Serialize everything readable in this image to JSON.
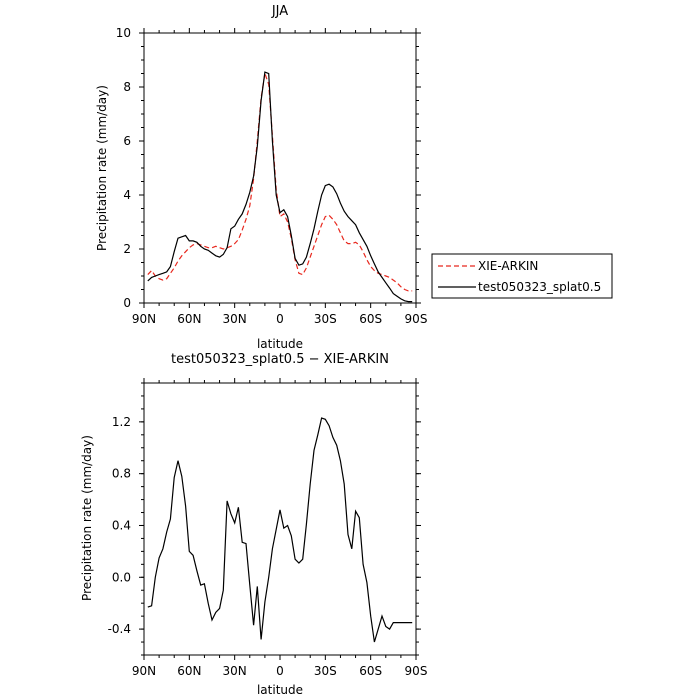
{
  "chart_data": [
    {
      "type": "line",
      "title": "JJA",
      "xlabel": "latitude",
      "ylabel": "Precipitation rate (mm/day)",
      "xlim": [
        90,
        -90
      ],
      "ylim": [
        0,
        10
      ],
      "x_ticks": [
        90,
        60,
        30,
        0,
        -30,
        -60,
        -90
      ],
      "x_tick_labels": [
        "90N",
        "60N",
        "30N",
        "0",
        "30S",
        "60S",
        "90S"
      ],
      "y_ticks": [
        0,
        2,
        4,
        6,
        8,
        10
      ],
      "y_tick_labels": [
        "0",
        "2",
        "4",
        "6",
        "8",
        "10"
      ],
      "legend": {
        "placement": "right",
        "entries": [
          "XIE-ARKIN",
          "test050323_splat0.5"
        ]
      },
      "series": [
        {
          "name": "XIE-ARKIN",
          "color": "#e8281e",
          "dash": "dashed",
          "x": [
            87.5,
            85,
            82.5,
            80,
            77.5,
            75,
            72.5,
            70,
            67.5,
            65,
            62.5,
            60,
            57.5,
            55,
            52.5,
            50,
            47.5,
            45,
            42.5,
            40,
            37.5,
            35,
            32.5,
            30,
            27.5,
            25,
            22.5,
            20,
            17.5,
            15,
            12.5,
            10,
            7.5,
            5,
            2.5,
            0,
            -2.5,
            -5,
            -7.5,
            -10,
            -12.5,
            -15,
            -17.5,
            -20,
            -22.5,
            -25,
            -27.5,
            -30,
            -32.5,
            -35,
            -37.5,
            -40,
            -42.5,
            -45,
            -47.5,
            -50,
            -52.5,
            -55,
            -57.5,
            -60,
            -62.5,
            -65,
            -67.5,
            -70,
            -72.5,
            -75,
            -77.5,
            -80,
            -82.5,
            -85,
            -87.5
          ],
          "y": [
            1.05,
            1.2,
            1.0,
            0.9,
            0.85,
            0.9,
            1.1,
            1.3,
            1.55,
            1.75,
            1.9,
            2.05,
            2.15,
            2.2,
            2.15,
            2.1,
            2.05,
            2.05,
            2.1,
            2.05,
            2.0,
            2.05,
            2.1,
            2.2,
            2.35,
            2.7,
            3.1,
            3.6,
            4.6,
            6.0,
            7.6,
            8.5,
            8.1,
            6.2,
            4.2,
            3.2,
            3.3,
            3.0,
            2.4,
            1.6,
            1.1,
            1.05,
            1.3,
            1.7,
            2.1,
            2.5,
            2.9,
            3.2,
            3.25,
            3.1,
            2.9,
            2.6,
            2.3,
            2.2,
            2.2,
            2.25,
            2.15,
            1.9,
            1.6,
            1.35,
            1.2,
            1.1,
            1.05,
            1.0,
            0.95,
            0.85,
            0.75,
            0.6,
            0.5,
            0.45,
            0.45
          ]
        },
        {
          "name": "test050323_splat0.5",
          "color": "#000000",
          "dash": "solid",
          "x": [
            87.5,
            85,
            82.5,
            80,
            77.5,
            75,
            72.5,
            70,
            67.5,
            65,
            62.5,
            60,
            57.5,
            55,
            52.5,
            50,
            47.5,
            45,
            42.5,
            40,
            37.5,
            35,
            32.5,
            30,
            27.5,
            25,
            22.5,
            20,
            17.5,
            15,
            12.5,
            10,
            7.5,
            5,
            2.5,
            0,
            -2.5,
            -5,
            -7.5,
            -10,
            -12.5,
            -15,
            -17.5,
            -20,
            -22.5,
            -25,
            -27.5,
            -30,
            -32.5,
            -35,
            -37.5,
            -40,
            -42.5,
            -45,
            -47.5,
            -50,
            -52.5,
            -55,
            -57.5,
            -60,
            -62.5,
            -65,
            -67.5,
            -70,
            -72.5,
            -75,
            -77.5,
            -80,
            -82.5,
            -85,
            -87.5
          ],
          "y": [
            0.82,
            0.95,
            1.0,
            1.05,
            1.1,
            1.15,
            1.35,
            1.9,
            2.4,
            2.45,
            2.5,
            2.3,
            2.3,
            2.25,
            2.1,
            2.0,
            1.95,
            1.85,
            1.75,
            1.7,
            1.8,
            2.05,
            2.75,
            2.85,
            3.1,
            3.3,
            3.65,
            4.1,
            4.7,
            5.8,
            7.5,
            8.55,
            8.5,
            6.0,
            4.0,
            3.35,
            3.45,
            3.2,
            2.5,
            1.65,
            1.4,
            1.45,
            1.7,
            2.2,
            2.75,
            3.4,
            4.0,
            4.35,
            4.4,
            4.3,
            4.05,
            3.7,
            3.4,
            3.2,
            3.05,
            2.9,
            2.6,
            2.35,
            2.1,
            1.75,
            1.45,
            1.15,
            0.95,
            0.75,
            0.55,
            0.35,
            0.25,
            0.15,
            0.08,
            0.05,
            0.05
          ]
        }
      ]
    },
    {
      "type": "line",
      "title": "test050323_splat0.5 − XIE-ARKIN",
      "xlabel": "latitude",
      "ylabel": "Precipitation rate (mm/day)",
      "xlim": [
        90,
        -90
      ],
      "ylim": [
        -0.6,
        1.5
      ],
      "x_ticks": [
        90,
        60,
        30,
        0,
        -30,
        -60,
        -90
      ],
      "x_tick_labels": [
        "90N",
        "60N",
        "30N",
        "0",
        "30S",
        "60S",
        "90S"
      ],
      "y_ticks": [
        -0.4,
        0,
        0.4,
        0.8,
        1.2
      ],
      "y_tick_labels": [
        "-0.4",
        "0.0",
        "0.4",
        "0.8",
        "1.2"
      ],
      "series": [
        {
          "color": "#000000",
          "dash": "solid",
          "x": [
            87.5,
            85,
            82.5,
            80,
            77.5,
            75,
            72.5,
            70,
            67.5,
            65,
            62.5,
            60,
            57.5,
            55,
            52.5,
            50,
            47.5,
            45,
            42.5,
            40,
            37.5,
            35,
            32.5,
            30,
            27.5,
            25,
            22.5,
            20,
            17.5,
            15,
            12.5,
            10,
            7.5,
            5,
            2.5,
            0,
            -2.5,
            -5,
            -7.5,
            -10,
            -12.5,
            -15,
            -17.5,
            -20,
            -22.5,
            -25,
            -27.5,
            -30,
            -32.5,
            -35,
            -37.5,
            -40,
            -42.5,
            -45,
            -47.5,
            -50,
            -52.5,
            -55,
            -57.5,
            -60,
            -62.5,
            -65,
            -67.5,
            -70,
            -72.5,
            -75,
            -77.5,
            -80,
            -82.5,
            -85,
            -87.5
          ],
          "y": [
            -0.23,
            -0.22,
            0.0,
            0.15,
            0.22,
            0.35,
            0.45,
            0.77,
            0.9,
            0.78,
            0.55,
            0.2,
            0.17,
            0.05,
            -0.06,
            -0.05,
            -0.2,
            -0.33,
            -0.27,
            -0.24,
            -0.1,
            0.59,
            0.49,
            0.42,
            0.54,
            0.27,
            0.26,
            -0.06,
            -0.37,
            -0.07,
            -0.48,
            -0.19,
            0.0,
            0.22,
            0.37,
            0.52,
            0.38,
            0.4,
            0.32,
            0.14,
            0.11,
            0.14,
            0.41,
            0.72,
            0.98,
            1.1,
            1.23,
            1.22,
            1.17,
            1.08,
            1.02,
            0.9,
            0.72,
            0.33,
            0.22,
            0.51,
            0.46,
            0.1,
            -0.04,
            -0.3,
            -0.5,
            -0.4,
            -0.3,
            -0.38,
            -0.4,
            -0.35,
            -0.35,
            -0.35,
            -0.35,
            -0.35,
            -0.35
          ]
        }
      ]
    }
  ]
}
